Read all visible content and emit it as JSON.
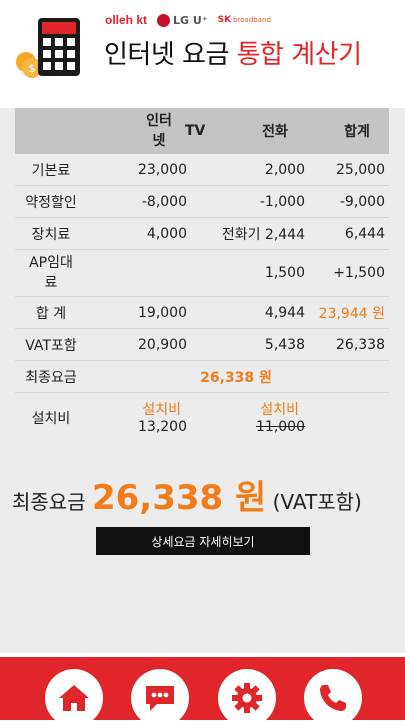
{
  "brands": {
    "kt": "olleh kt",
    "lg": "LG U⁺",
    "sk": "SK",
    "sk_sub": "broadband"
  },
  "title": {
    "part1": "인터넷 요금 ",
    "part2": "통합 계산기"
  },
  "table": {
    "headers": {
      "internet": "인터넷",
      "tv": "TV",
      "phone": "전화",
      "total": "합계"
    },
    "rows": [
      {
        "label": "기본료",
        "tv": "23,000",
        "phone": "2,000",
        "total": "25,000"
      },
      {
        "label": "약정할인",
        "tv": "-8,000",
        "phone": "-1,000",
        "total": "-9,000"
      },
      {
        "label": "장치료",
        "tv": "4,000",
        "phone": "전화기 2,444",
        "total": "6,444"
      },
      {
        "label": "AP임대료",
        "tv": "",
        "phone": "1,500",
        "total": "+1,500"
      },
      {
        "label": "합 계",
        "tv": "19,000",
        "phone": "4,944",
        "total": "23,944 원"
      },
      {
        "label": "VAT포함",
        "tv": "20,900",
        "phone": "5,438",
        "total": "26,338"
      }
    ],
    "final": {
      "label": "최종요금",
      "value": "26,338 원"
    },
    "install": {
      "label": "설치비",
      "tv_tag": "설치비",
      "tv_value": "13,200",
      "phone_tag": "설치비",
      "phone_value": "11,000"
    }
  },
  "summary": {
    "prefix": "최종요금 ",
    "amount": "26,338 원",
    "suffix": " (VAT포함)"
  },
  "detail_button": "상세요금 자세히보기",
  "footer": {
    "icons": [
      "home-icon",
      "chat-icon",
      "gear-icon",
      "phone-icon"
    ]
  },
  "colors": {
    "accent_red": "#e0262b",
    "accent_orange": "#f07d1a",
    "header_gray": "#c4c4c4",
    "panel_gray": "#ececec"
  }
}
